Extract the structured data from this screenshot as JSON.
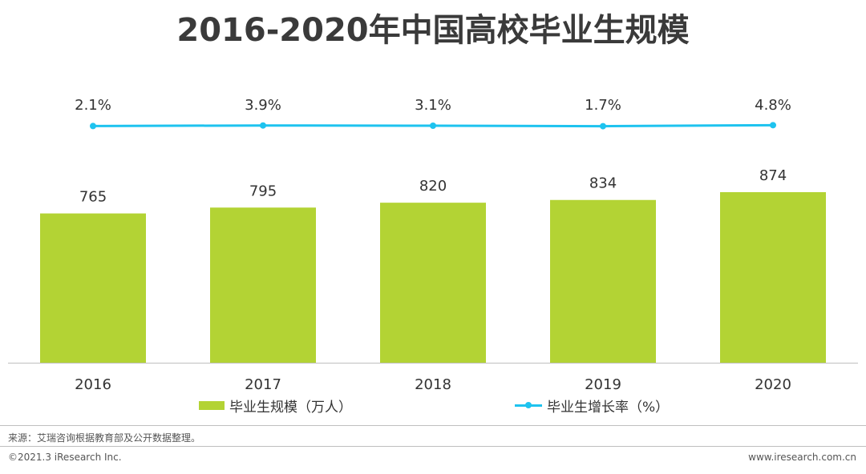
{
  "title": "2016-2020年中国高校毕业生规模",
  "legend": {
    "bar_label": "毕业生规模（万人）",
    "line_label": "毕业生增长率（%）"
  },
  "colors": {
    "bar": "#b3d334",
    "line": "#1ec3ef",
    "axis": "#bfbfbf",
    "text": "#333333"
  },
  "chart_data": {
    "type": "bar",
    "title": "2016-2020年中国高校毕业生规模",
    "categories": [
      "2016",
      "2017",
      "2018",
      "2019",
      "2020"
    ],
    "series": [
      {
        "name": "毕业生规模（万人）",
        "type": "bar",
        "values": [
          765,
          795,
          820,
          834,
          874
        ],
        "labels": [
          "765",
          "795",
          "820",
          "834",
          "874"
        ]
      },
      {
        "name": "毕业生增长率（%）",
        "type": "line",
        "values": [
          2.1,
          3.9,
          3.1,
          1.7,
          4.8
        ],
        "labels": [
          "2.1%",
          "3.9%",
          "3.1%",
          "1.7%",
          "4.8%"
        ]
      }
    ],
    "ylim": [
      0,
      874
    ],
    "grid": false,
    "legend_position": "bottom"
  },
  "footer": {
    "source": "来源：艾瑞咨询根据教育部及公开数据整理。",
    "copyright": "©2021.3 iResearch Inc.",
    "website": "www.iresearch.com.cn"
  }
}
